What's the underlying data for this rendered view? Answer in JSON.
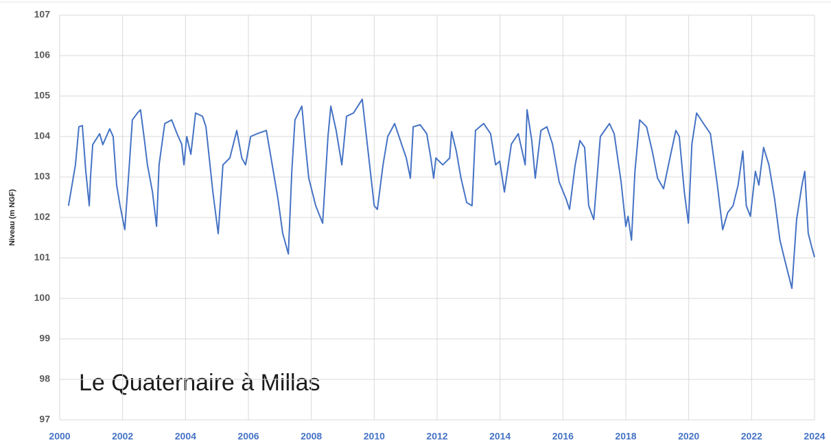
{
  "chart_data": {
    "type": "line",
    "y_label": "Niveau (m NGF)",
    "annotation": "Le Quaternaire à Millas",
    "color": "#4472c4",
    "grid": true,
    "xlim": [
      2000,
      2024
    ],
    "ylim": [
      97,
      107
    ],
    "xticks": [
      2000,
      2002,
      2004,
      2006,
      2008,
      2010,
      2012,
      2014,
      2016,
      2018,
      2020,
      2022,
      2024
    ],
    "yticks": [
      97,
      98,
      99,
      100,
      101,
      102,
      103,
      104,
      105,
      106,
      107
    ],
    "x": [
      2000.28,
      2000.5,
      2000.61,
      2000.72,
      2000.83,
      2000.94,
      2000.98,
      2001.05,
      2001.27,
      2001.37,
      2001.59,
      2001.7,
      2001.81,
      2001.92,
      2002.07,
      2002.2,
      2002.31,
      2002.47,
      2002.57,
      2002.68,
      2002.79,
      2002.95,
      2003.08,
      2003.16,
      2003.34,
      2003.56,
      2003.73,
      2003.88,
      2003.95,
      2004.04,
      2004.17,
      2004.32,
      2004.54,
      2004.65,
      2004.87,
      2005.04,
      2005.19,
      2005.41,
      2005.63,
      2005.79,
      2005.91,
      2006.07,
      2006.28,
      2006.57,
      2006.72,
      2006.94,
      2007.09,
      2007.27,
      2007.38,
      2007.48,
      2007.7,
      2007.81,
      2007.92,
      2008.14,
      2008.36,
      2008.53,
      2008.62,
      2008.79,
      2008.97,
      2009.12,
      2009.34,
      2009.62,
      2009.78,
      2010.0,
      2010.1,
      2010.28,
      2010.43,
      2010.65,
      2010.87,
      2011.02,
      2011.15,
      2011.24,
      2011.46,
      2011.67,
      2011.8,
      2011.89,
      2011.96,
      2012.18,
      2012.4,
      2012.46,
      2012.61,
      2012.76,
      2012.94,
      2013.11,
      2013.22,
      2013.48,
      2013.7,
      2013.86,
      2013.99,
      2014.14,
      2014.36,
      2014.58,
      2014.8,
      2014.86,
      2015.01,
      2015.12,
      2015.3,
      2015.49,
      2015.67,
      2015.88,
      2016.1,
      2016.21,
      2016.39,
      2016.54,
      2016.69,
      2016.82,
      2016.98,
      2017.19,
      2017.48,
      2017.63,
      2017.85,
      2018.0,
      2018.07,
      2018.18,
      2018.29,
      2018.44,
      2018.66,
      2018.84,
      2019.01,
      2019.2,
      2019.38,
      2019.59,
      2019.7,
      2019.86,
      2019.99,
      2020.1,
      2020.25,
      2020.47,
      2020.69,
      2020.91,
      2021.08,
      2021.24,
      2021.41,
      2021.57,
      2021.72,
      2021.83,
      2021.96,
      2022.12,
      2022.23,
      2022.38,
      2022.55,
      2022.73,
      2022.9,
      2023.06,
      2023.28,
      2023.43,
      2023.6,
      2023.69,
      2023.8,
      2023.91,
      2024.0
    ],
    "values": [
      102.29,
      103.3,
      104.24,
      104.27,
      103.14,
      102.29,
      103.0,
      103.8,
      104.07,
      103.8,
      104.19,
      104.0,
      102.8,
      102.29,
      101.7,
      103.14,
      104.41,
      104.58,
      104.66,
      104.0,
      103.3,
      102.63,
      101.78,
      103.3,
      104.32,
      104.41,
      104.07,
      103.81,
      103.3,
      104.0,
      103.56,
      104.58,
      104.5,
      104.24,
      102.63,
      101.6,
      103.3,
      103.47,
      104.15,
      103.47,
      103.3,
      104.0,
      104.07,
      104.15,
      103.47,
      102.46,
      101.61,
      101.1,
      103.14,
      104.41,
      104.75,
      103.81,
      102.97,
      102.29,
      101.86,
      104.0,
      104.75,
      104.15,
      103.3,
      104.5,
      104.58,
      104.92,
      103.81,
      102.29,
      102.2,
      103.3,
      104.0,
      104.32,
      103.81,
      103.47,
      102.97,
      104.24,
      104.29,
      104.07,
      103.47,
      102.97,
      103.47,
      103.3,
      103.47,
      104.12,
      103.64,
      102.97,
      102.37,
      102.29,
      104.15,
      104.32,
      104.07,
      103.3,
      103.39,
      102.63,
      103.81,
      104.07,
      103.3,
      104.66,
      103.9,
      102.97,
      104.15,
      104.24,
      103.81,
      102.88,
      102.46,
      102.2,
      103.3,
      103.9,
      103.73,
      102.29,
      101.95,
      104.0,
      104.32,
      104.07,
      102.88,
      101.78,
      102.03,
      101.44,
      103.14,
      104.41,
      104.24,
      103.64,
      102.97,
      102.71,
      103.39,
      104.15,
      104.0,
      102.63,
      101.86,
      103.81,
      104.58,
      104.32,
      104.07,
      102.8,
      101.7,
      102.12,
      102.29,
      102.8,
      103.64,
      102.29,
      102.03,
      103.14,
      102.8,
      103.73,
      103.3,
      102.46,
      101.44,
      100.93,
      100.25,
      101.95,
      102.8,
      103.14,
      101.61,
      101.27,
      101.02
    ]
  }
}
